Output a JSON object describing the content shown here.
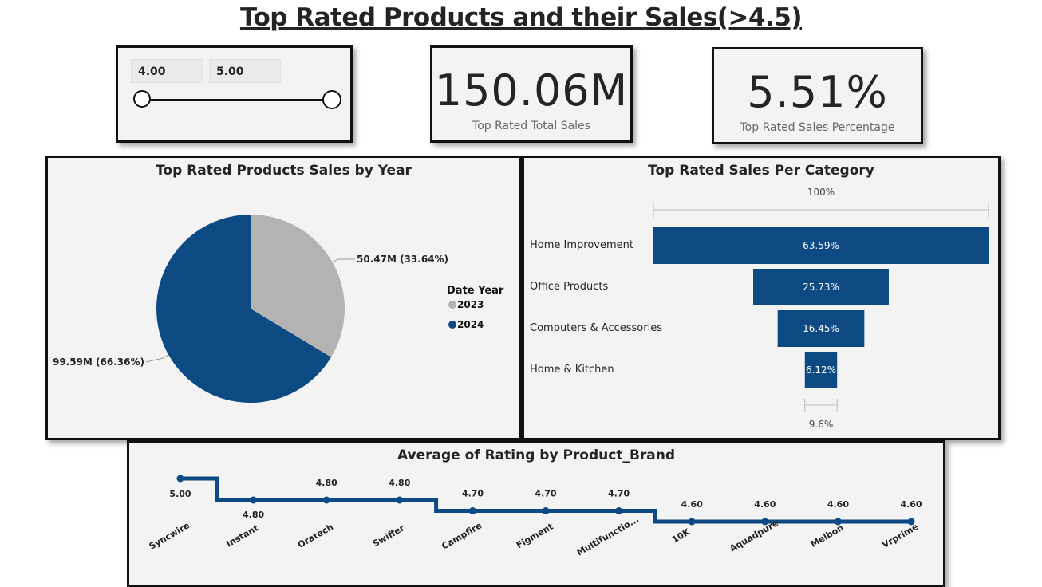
{
  "page": {
    "title": "Top Rated Products and their Sales(>4.5)"
  },
  "slider": {
    "min": "4.00",
    "max": "5.00"
  },
  "kpis": [
    {
      "value": "150.06M",
      "label": "Top Rated Total Sales"
    },
    {
      "value": "5.51%",
      "label": "Top Rated Sales Percentage"
    }
  ],
  "colors": {
    "primary": "#0d4a84",
    "secondary": "#b3b3b3"
  },
  "chart_data": [
    {
      "type": "pie",
      "title": "Top Rated Products Sales by Year",
      "legend_title": "Date Year",
      "legend_position": "right",
      "slices": [
        {
          "name": "2023",
          "value": 50.47,
          "label": "50.47M (33.64%)",
          "color": "#b3b3b3"
        },
        {
          "name": "2024",
          "value": 99.59,
          "label": "99.59M (66.36%)",
          "color": "#0d4a84"
        }
      ]
    },
    {
      "type": "bar",
      "subtype": "funnel",
      "title": "Top Rated Sales Per Category",
      "top_label": "100%",
      "bottom_label": "9.6%",
      "categories": [
        "Home Improvement",
        "Office Products",
        "Computers & Accessories",
        "Home & Kitchen"
      ],
      "values": [
        63.59,
        25.73,
        16.45,
        6.12
      ],
      "data_labels": [
        "63.59%",
        "25.73%",
        "16.45%",
        "6.12%"
      ]
    },
    {
      "type": "line",
      "subtype": "step",
      "title": "Average of Rating by Product_Brand",
      "categories": [
        "Syncwire",
        "Instant",
        "Oratech",
        "Swiffer",
        "Campfire",
        "Figment",
        "Multifunctio...",
        "10K",
        "Aquadpure",
        "Melbon",
        "Vrprime"
      ],
      "values": [
        5.0,
        4.8,
        4.8,
        4.8,
        4.7,
        4.7,
        4.7,
        4.6,
        4.6,
        4.6,
        4.6
      ],
      "data_labels": [
        "5.00",
        "4.80",
        "4.80",
        "4.80",
        "4.70",
        "4.70",
        "4.70",
        "4.60",
        "4.60",
        "4.60",
        "4.60"
      ]
    }
  ]
}
